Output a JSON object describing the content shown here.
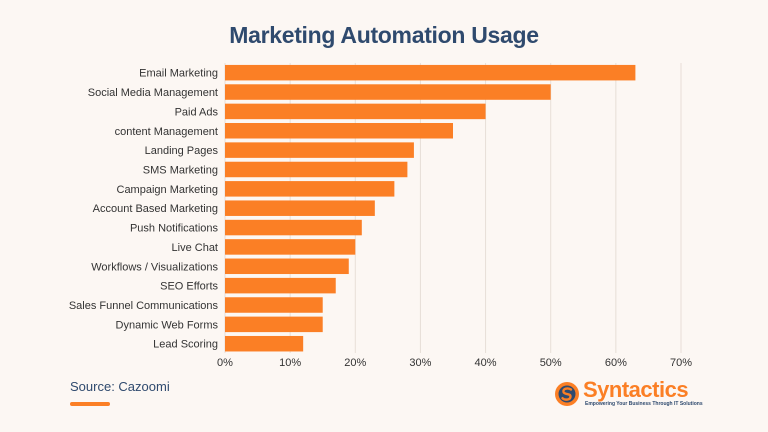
{
  "colors": {
    "bar": "#fb7f25",
    "title": "#2f4a6e",
    "grid": "#e7ded7",
    "text": "#333333",
    "brand_blue": "#2f4a6e"
  },
  "source": {
    "text": "Source: Cazoomi"
  },
  "logo": {
    "name": "Syntactics",
    "tagline": "Empowering Your Business Through IT Solutions",
    "icon": "syntactics-s-logo-icon"
  },
  "chart_data": {
    "type": "bar",
    "orientation": "horizontal",
    "title": "Marketing Automation Usage",
    "xlabel": "",
    "ylabel": "",
    "categories": [
      "Email Marketing",
      "Social Media Management",
      "Paid Ads",
      "content Management",
      "Landing Pages",
      "SMS Marketing",
      "Campaign Marketing",
      "Account Based Marketing",
      "Push Notifications",
      "Live Chat",
      "Workflows / Visualizations",
      "SEO Efforts",
      "Sales Funnel Communications",
      "Dynamic Web Forms",
      "Lead Scoring"
    ],
    "values": [
      63,
      50,
      40,
      35,
      29,
      28,
      26,
      23,
      21,
      20,
      19,
      17,
      15,
      15,
      12
    ],
    "xlim": [
      0,
      70
    ],
    "xticks": [
      0,
      10,
      20,
      30,
      40,
      50,
      60,
      70
    ],
    "tick_suffix": "%",
    "grid": true
  }
}
